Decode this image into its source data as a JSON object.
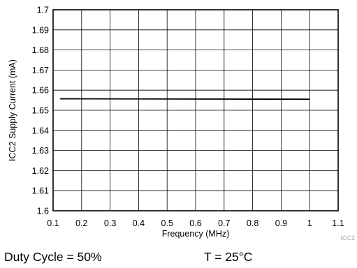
{
  "chart_data": {
    "type": "line",
    "xlabel": "Frequency (MHz)",
    "ylabel": "ICC2 Supply Current (mA)",
    "xlim": [
      0.1,
      1.1
    ],
    "ylim": [
      1.6,
      1.7
    ],
    "x_ticks": [
      "0.1",
      "0.2",
      "0.3",
      "0.4",
      "0.5",
      "0.6",
      "0.7",
      "0.8",
      "0.9",
      "1",
      "1.1"
    ],
    "y_ticks": [
      "1.7",
      "1.69",
      "1.68",
      "1.67",
      "1.66",
      "1.65",
      "1.64",
      "1.63",
      "1.62",
      "1.61",
      "1.6"
    ],
    "grid": true,
    "series": [
      {
        "x": [
          0.125,
          1.0
        ],
        "y": [
          1.6557,
          1.6555
        ],
        "color": "#000000"
      }
    ],
    "watermark": "ICC2"
  },
  "captions": {
    "duty_cycle": "Duty Cycle = 50%",
    "temperature": "T = 25°C"
  }
}
